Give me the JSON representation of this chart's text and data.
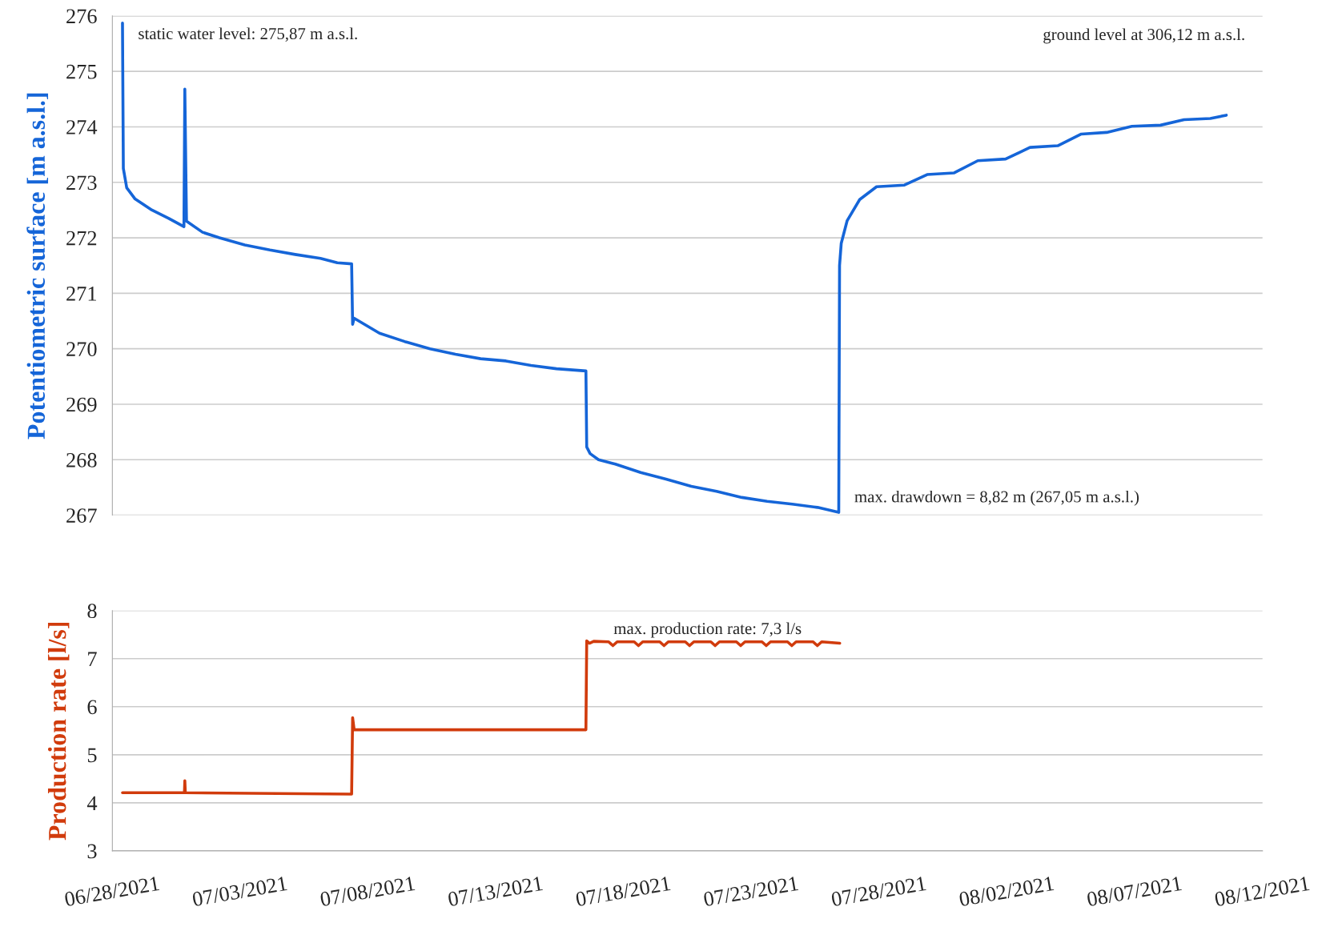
{
  "chart_data": [
    {
      "type": "line",
      "ylabel": "Potentiometric surface [m a.s.l.]",
      "ylim": [
        267,
        276
      ],
      "yticks": [
        267,
        268,
        269,
        270,
        271,
        272,
        273,
        274,
        275,
        276
      ],
      "xlim": [
        "2021-06-28",
        "2021-08-12"
      ],
      "tick_labels": "y",
      "grid": "y",
      "marker": "none",
      "line_style": "solid",
      "series": [
        {
          "color": "#1565d8",
          "x": [
            "2021-06-28T09:30",
            "2021-06-28T10:18",
            "2021-06-28T13:30",
            "2021-06-28T21:22",
            "2021-06-29T13:12",
            "2021-06-30T05:00",
            "2021-06-30T19:12",
            "2021-06-30T20:02",
            "2021-06-30T21:36",
            "2021-07-01T12:40",
            "2021-07-02T04:30",
            "2021-07-03T04:20",
            "2021-07-04T03:55",
            "2021-07-05T03:40",
            "2021-07-06T03:25",
            "2021-07-06T19:15",
            "2021-07-07T08:40",
            "2021-07-07T09:36",
            "2021-07-07T11:00",
            "2021-07-08T10:50",
            "2021-07-09T10:30",
            "2021-07-10T10:20",
            "2021-07-11T10:05",
            "2021-07-12T09:50",
            "2021-07-13T09:35",
            "2021-07-14T09:10",
            "2021-07-15T09:00",
            "2021-07-16T12:40",
            "2021-07-16T13:25",
            "2021-07-16T16:35",
            "2021-07-17T00:30",
            "2021-07-17T16:20",
            "2021-07-18T16:05",
            "2021-07-19T15:50",
            "2021-07-20T15:35",
            "2021-07-21T15:20",
            "2021-07-22T15:05",
            "2021-07-23T14:50",
            "2021-07-24T14:25",
            "2021-07-25T14:10",
            "2021-07-26T10:05",
            "2021-07-26T10:50",
            "2021-07-26T12:25",
            "2021-07-26T18:00",
            "2021-07-27T05:45",
            "2021-07-27T21:35",
            "2021-07-28T23:45",
            "2021-07-29T21:05",
            "2021-07-30T22:30",
            "2021-07-31T20:40",
            "2021-08-01T22:45",
            "2021-08-02T21:40",
            "2021-08-03T23:45",
            "2021-08-04T21:50",
            "2021-08-05T21:40",
            "2021-08-06T21:20",
            "2021-08-08T00:15",
            "2021-08-08T22:20",
            "2021-08-09T23:00",
            "2021-08-10T14:00"
          ],
          "values": [
            275.87,
            273.25,
            272.9,
            272.7,
            272.5,
            272.35,
            272.2,
            274.68,
            272.3,
            272.1,
            272.0,
            271.87,
            271.78,
            271.7,
            271.63,
            271.55,
            271.53,
            270.44,
            270.55,
            270.28,
            270.13,
            270.0,
            269.9,
            269.82,
            269.78,
            269.7,
            269.64,
            269.6,
            268.23,
            268.11,
            268.0,
            267.92,
            267.77,
            267.65,
            267.52,
            267.43,
            267.32,
            267.25,
            267.2,
            267.14,
            267.05,
            271.5,
            271.9,
            272.31,
            272.69,
            272.92,
            272.95,
            273.14,
            273.17,
            273.39,
            273.42,
            273.63,
            273.66,
            273.87,
            273.9,
            274.01,
            274.03,
            274.13,
            274.15,
            274.21
          ]
        }
      ],
      "annotations": [
        {
          "text": "static water level: 275,87 m a.s.l.",
          "x": "2021-06-28T09:30",
          "y": 275.87
        },
        "ground level at 306,12 m a.s.l.",
        {
          "text": "max. drawdown = 8,82 m (267,05 m a.s.l.)",
          "x": "2021-07-26T10:05",
          "y": 267.05
        }
      ]
    },
    {
      "type": "line",
      "ylabel": "Production rate [l/s]",
      "ylim": [
        3,
        8
      ],
      "yticks": [
        3,
        4,
        5,
        6,
        7,
        8
      ],
      "xlim": [
        "2021-06-28",
        "2021-08-12"
      ],
      "xticks": [
        {
          "value": "2021-06-28",
          "label": "06/28/2021"
        },
        {
          "value": "2021-07-03",
          "label": "07/03/2021"
        },
        {
          "value": "2021-07-08",
          "label": "07/08/2021"
        },
        {
          "value": "2021-07-13",
          "label": "07/13/2021"
        },
        {
          "value": "2021-07-18",
          "label": "07/18/2021"
        },
        {
          "value": "2021-07-23",
          "label": "07/23/2021"
        },
        {
          "value": "2021-07-28",
          "label": "07/28/2021"
        },
        {
          "value": "2021-08-02",
          "label": "08/02/2021"
        },
        {
          "value": "2021-08-07",
          "label": "08/07/2021"
        },
        {
          "value": "2021-08-12",
          "label": "08/12/2021"
        }
      ],
      "grid": "y",
      "marker": "none",
      "line_style": "solid",
      "series": [
        {
          "color": "#d13b0c",
          "x": [
            "2021-06-28T09:30",
            "2021-06-30T19:40",
            "2021-06-30T20:02",
            "2021-06-30T20:30",
            "2021-07-07T08:40",
            "2021-07-07T09:36",
            "2021-07-07T11:00",
            "2021-07-16T12:40",
            "2021-07-16T13:25",
            "2021-07-16T16:00",
            "2021-07-16T20:00",
            "2021-07-17T10:00",
            "2021-07-17T14:00",
            "2021-07-17T18:00",
            "2021-07-18T10:00",
            "2021-07-18T14:00",
            "2021-07-18T18:00",
            "2021-07-19T10:00",
            "2021-07-19T14:00",
            "2021-07-19T18:00",
            "2021-07-20T10:00",
            "2021-07-20T14:00",
            "2021-07-20T18:00",
            "2021-07-21T10:00",
            "2021-07-21T14:00",
            "2021-07-21T18:00",
            "2021-07-22T10:00",
            "2021-07-22T14:00",
            "2021-07-22T18:00",
            "2021-07-23T10:00",
            "2021-07-23T14:00",
            "2021-07-23T18:00",
            "2021-07-24T10:00",
            "2021-07-24T14:00",
            "2021-07-24T18:00",
            "2021-07-25T10:00",
            "2021-07-25T14:00",
            "2021-07-25T18:00",
            "2021-07-26T11:00"
          ],
          "values": [
            4.21,
            4.21,
            4.46,
            4.21,
            4.18,
            5.77,
            5.52,
            5.52,
            7.37,
            7.32,
            7.36,
            7.35,
            7.27,
            7.35,
            7.35,
            7.27,
            7.35,
            7.35,
            7.27,
            7.35,
            7.35,
            7.27,
            7.35,
            7.35,
            7.27,
            7.35,
            7.35,
            7.27,
            7.35,
            7.35,
            7.27,
            7.35,
            7.35,
            7.27,
            7.35,
            7.35,
            7.27,
            7.35,
            7.32
          ]
        }
      ],
      "annotations": [
        {
          "text": "max. production rate: 7,3 l/s",
          "x": "2021-07-17T00:00",
          "y": 7.3
        }
      ]
    }
  ]
}
